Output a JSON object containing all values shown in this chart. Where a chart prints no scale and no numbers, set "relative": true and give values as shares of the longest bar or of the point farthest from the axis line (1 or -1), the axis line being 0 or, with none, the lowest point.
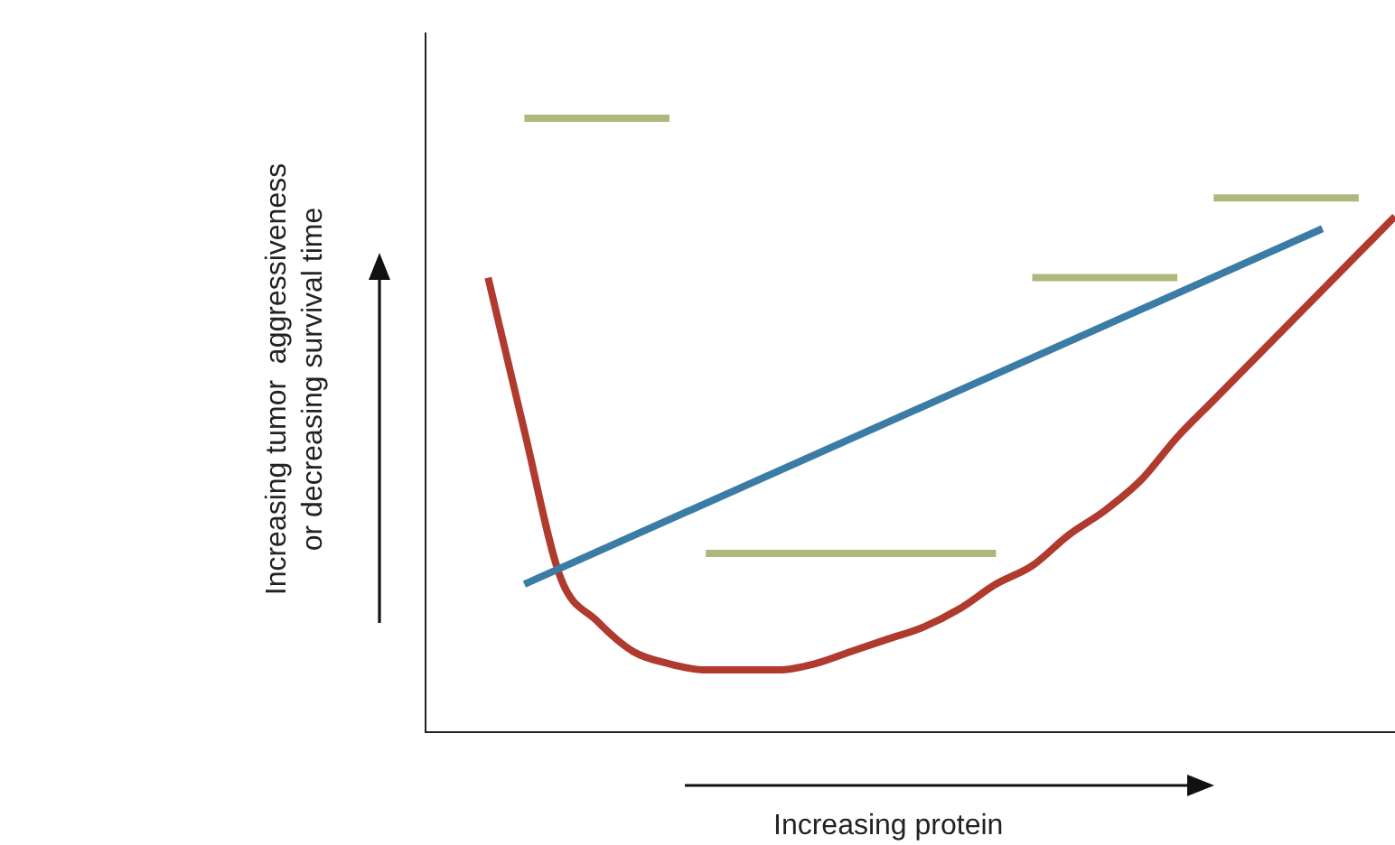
{
  "chart_data": {
    "type": "line",
    "relative": true,
    "xlabel": "Increasing protein",
    "ylabel": "Increasing tumor  aggressiveness\nor decreasing survival time",
    "legend": false,
    "grid": false,
    "marker": "none",
    "line_style": "solid",
    "categories": [
      null,
      null,
      null,
      null,
      null,
      null,
      null,
      null,
      null,
      null,
      null,
      null,
      null,
      null,
      null,
      null,
      null,
      null,
      null,
      null,
      null,
      null,
      null,
      null,
      null,
      null
    ],
    "series": [
      {
        "color": "#b0b77c",
        "values": [
          null,
          1.0,
          null,
          null,
          null,
          1.0,
          null,
          null,
          null,
          null,
          null,
          null,
          null,
          null,
          null,
          null,
          null,
          null,
          null,
          null,
          null,
          null,
          null,
          null,
          null,
          null
        ]
      },
      {
        "color": "#b0b77c",
        "values": [
          null,
          null,
          null,
          null,
          null,
          null,
          0.29,
          null,
          null,
          null,
          null,
          null,
          null,
          null,
          0.29,
          null,
          null,
          null,
          null,
          null,
          null,
          null,
          null,
          null,
          null,
          null
        ]
      },
      {
        "color": "#b0b77c",
        "values": [
          null,
          null,
          null,
          null,
          null,
          null,
          null,
          null,
          null,
          null,
          null,
          null,
          null,
          null,
          null,
          0.74,
          null,
          null,
          null,
          0.74,
          null,
          null,
          null,
          null,
          null,
          null
        ]
      },
      {
        "color": "#b0b77c",
        "values": [
          null,
          null,
          null,
          null,
          null,
          null,
          null,
          null,
          null,
          null,
          null,
          null,
          null,
          null,
          null,
          null,
          null,
          null,
          null,
          null,
          0.87,
          null,
          null,
          null,
          0.87,
          null
        ]
      },
      {
        "color": "#3a7ca5",
        "values": [
          null,
          0.24,
          null,
          null,
          null,
          null,
          null,
          null,
          null,
          null,
          null,
          null,
          null,
          null,
          null,
          null,
          null,
          null,
          null,
          null,
          null,
          null,
          null,
          0.82,
          null,
          null
        ]
      },
      {
        "color": "#b03a2e",
        "values": [
          0.74,
          0.49,
          0.25,
          0.18,
          0.13,
          0.11,
          0.1,
          0.1,
          0.1,
          0.11,
          0.13,
          0.15,
          0.17,
          0.2,
          0.24,
          0.27,
          0.32,
          0.36,
          0.41,
          0.48,
          0.54,
          0.6,
          0.66,
          0.72,
          0.78,
          0.84
        ]
      }
    ]
  }
}
